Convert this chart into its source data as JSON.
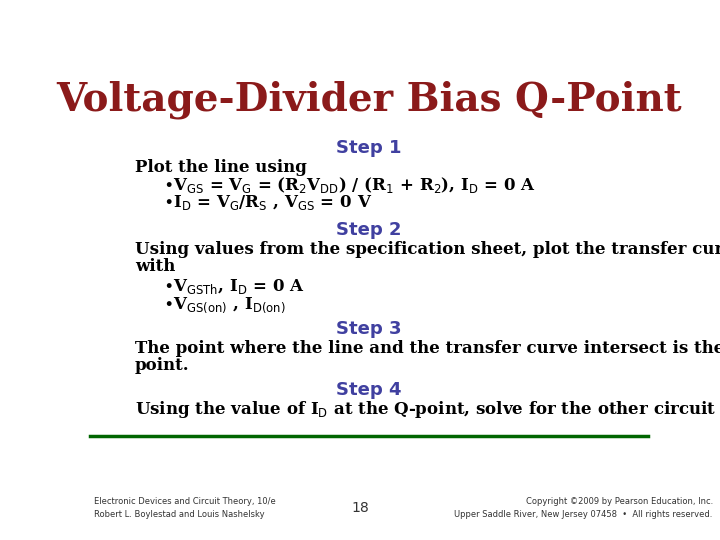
{
  "title": "Voltage-Divider Bias Q-Point",
  "title_color": "#8B1A1A",
  "title_fontsize": 28,
  "step_color": "#4040A0",
  "step_fontsize": 13,
  "body_color": "#000000",
  "body_fontsize": 12,
  "bg_color": "#FFFFFF",
  "footer_line_color": "#006600",
  "footer_left1": "Electronic Devices and Circuit Theory, 10/e",
  "footer_left2": "Robert L. Boylestad and Louis Nashelsky",
  "footer_center": "18",
  "footer_right1": "Copyright ©2009 by Pearson Education, Inc.",
  "footer_right2": "Upper Saddle River, New Jersey 07458  •  All rights reserved.",
  "pearson_box_color": "#8B1A1A"
}
